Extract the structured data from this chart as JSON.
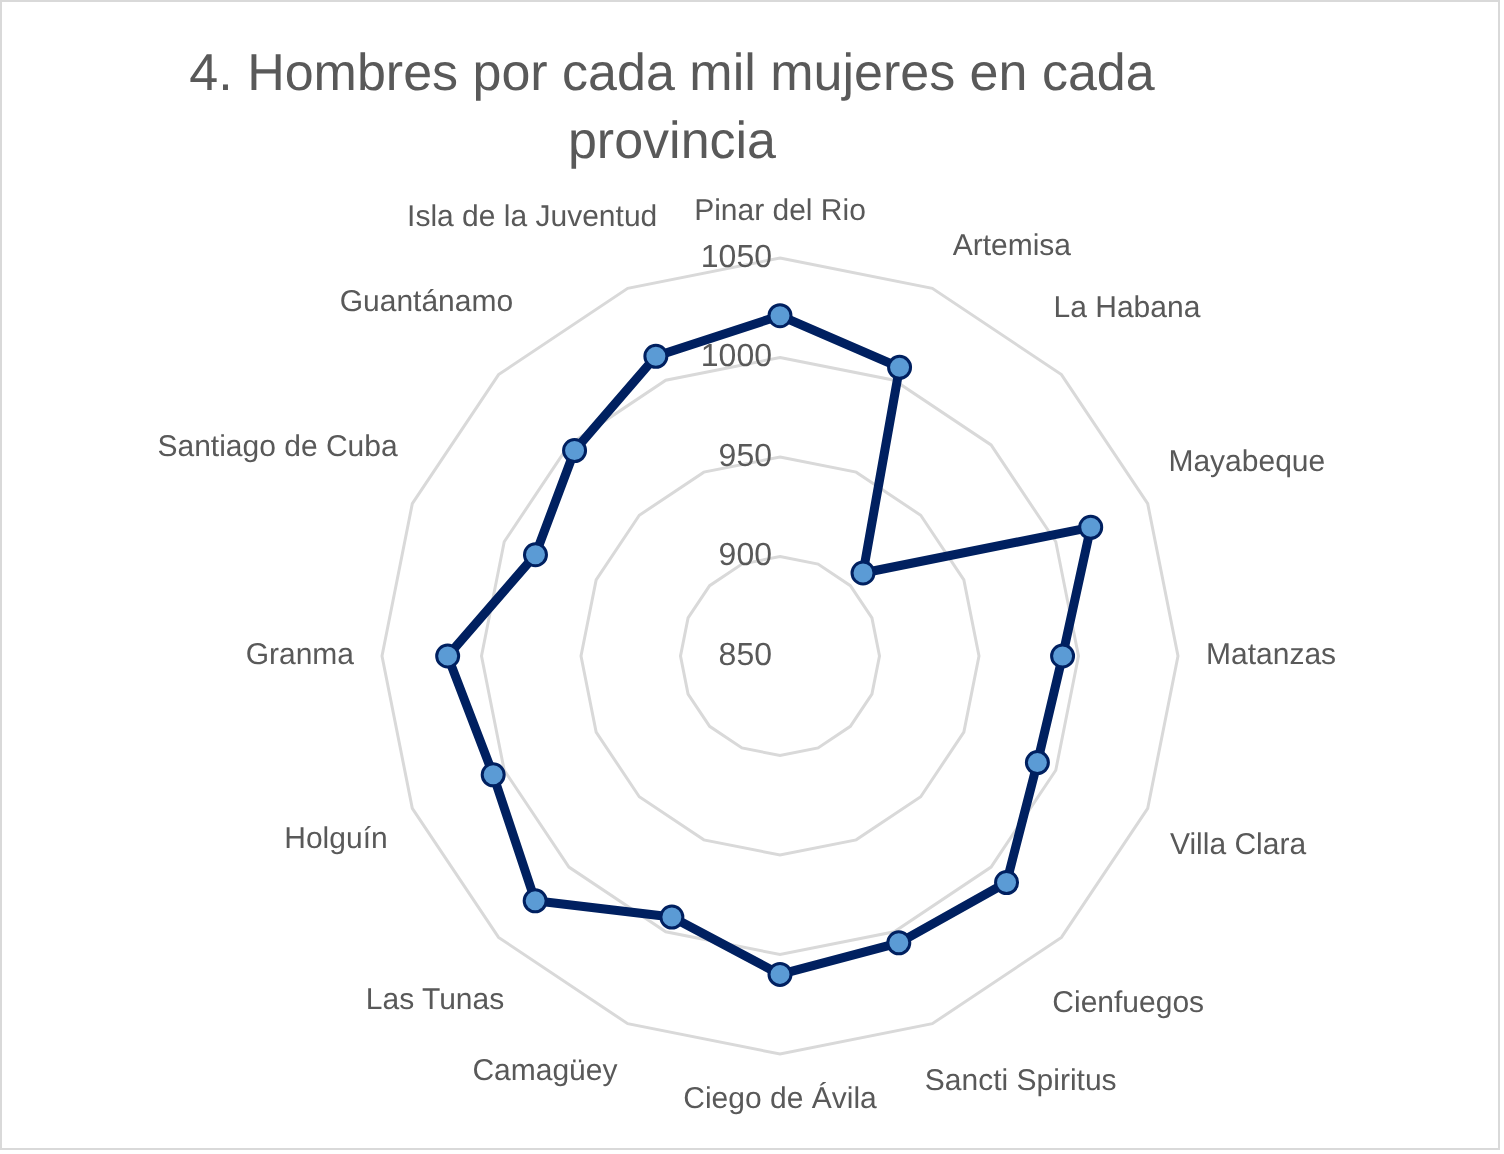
{
  "chart_data": {
    "type": "radar",
    "title": "4. Hombres por cada mil mujeres en cada provincia",
    "categories": [
      "Pinar del Rio",
      "Artemisa",
      "La Habana",
      "Mayabeque",
      "Matanzas",
      "Villa Clara",
      "Cienfuegos",
      "Sancti Spiritus",
      "Ciego de Ávila",
      "Camagüey",
      "Las Tunas",
      "Holguín",
      "Granma",
      "Santiago de Cuba",
      "Guantánamo",
      "Isla de la Juventud"
    ],
    "series": [
      {
        "color": "#002060",
        "values": [
          1021,
          1007,
          909,
          1019,
          992,
          990,
          1011,
          1006,
          1010,
          992,
          1024,
          1006,
          1017,
          983,
          996,
          1013
        ]
      }
    ],
    "ylim": [
      850,
      1050
    ],
    "yticks": [
      850,
      900,
      950,
      1000,
      1050
    ],
    "grid": true,
    "legend": false,
    "marker": "circle",
    "line_style": "solid"
  }
}
